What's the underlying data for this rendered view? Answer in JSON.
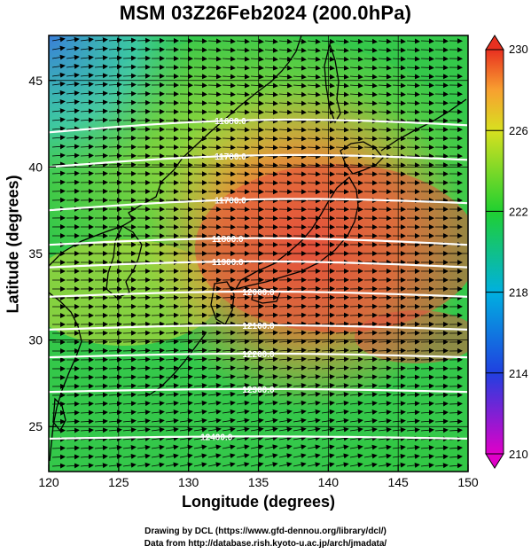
{
  "title": "MSM 03Z26Feb2024 (200.0hPa)",
  "xlabel": "Longitude (degrees)",
  "ylabel": "Latitude  (degrees)",
  "credits": [
    "Drawing by DCL (https://www.gfd-dennou.org/library/dcl/)",
    "Data from http://database.rish.kyoto-u.ac.jp/arch/jmadata/"
  ],
  "map": {
    "lon_range": [
      120,
      150
    ],
    "lat_range": [
      22.4,
      47.6
    ],
    "lon_ticks": [
      120,
      125,
      130,
      135,
      140,
      145,
      150
    ],
    "lat_ticks": [
      25,
      30,
      35,
      40,
      45
    ],
    "lon_tick_labels": [
      "120",
      "125",
      "130",
      "135",
      "140",
      "145",
      "150"
    ],
    "lat_tick_labels": [
      "25",
      "30",
      "35",
      "40",
      "45"
    ],
    "shaded_field": "temperature (K)",
    "contour_field": "geopotential height (m)",
    "vectors": "wind (mostly westerly)"
  },
  "colorbar": {
    "min": 210,
    "max": 230,
    "ticks": [
      210,
      214,
      218,
      222,
      226,
      230
    ],
    "tick_labels": [
      "210",
      "214",
      "218",
      "222",
      "226",
      "230"
    ],
    "colors": [
      "#e000c8",
      "#2040e0",
      "#00b0e0",
      "#20d030",
      "#d8e020",
      "#f8a030",
      "#e83020"
    ]
  },
  "contours": [
    {
      "label": "11600.0",
      "lat": 42.0
    },
    {
      "label": "11700.0",
      "lat": 40.0
    },
    {
      "label": "11700.0",
      "lat": 37.5
    },
    {
      "label": "11800.0",
      "lat": 35.5
    },
    {
      "label": "11900.0",
      "lat": 34.2
    },
    {
      "label": "12000.0",
      "lat": 32.5
    },
    {
      "label": "12100.0",
      "lat": 30.6
    },
    {
      "label": "12200.0",
      "lat": 29.0
    },
    {
      "label": "12300.0",
      "lat": 27.0
    },
    {
      "label": "12400.0",
      "lat": 24.3
    }
  ]
}
